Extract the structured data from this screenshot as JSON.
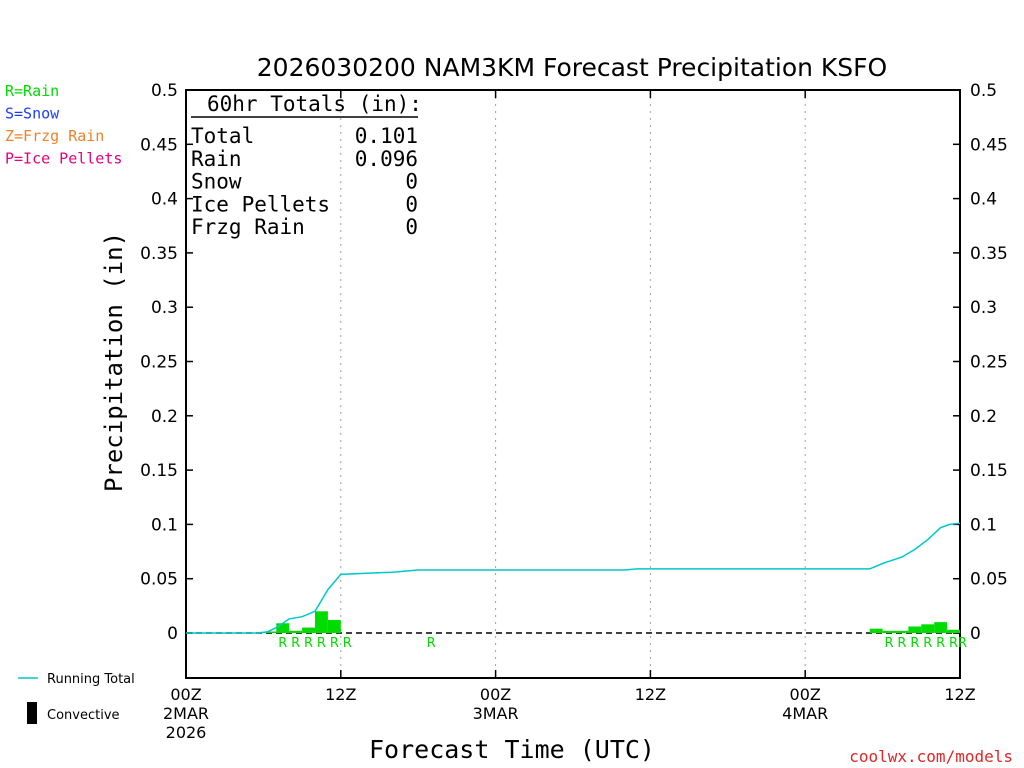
{
  "chart_data": {
    "type": "bar",
    "title": "2026030200 NAM3KM Forecast Precipitation KSFO",
    "xlabel": "Forecast Time (UTC)",
    "ylabel": "Precipitation (in)",
    "ylim": [
      -0.04,
      0.5
    ],
    "xlim_hours": [
      0,
      60
    ],
    "y_ticks": [
      "0.5",
      "0.45",
      "0.4",
      "0.35",
      "0.3",
      "0.25",
      "0.2",
      "0.15",
      "0.1",
      "0.05",
      "0"
    ],
    "y_tick_values": [
      0.5,
      0.45,
      0.4,
      0.35,
      0.3,
      0.25,
      0.2,
      0.15,
      0.1,
      0.05,
      0
    ],
    "x_ticks": [
      {
        "hour": 0,
        "label": "00Z",
        "sub1": "2MAR",
        "sub2": "2026"
      },
      {
        "hour": 12,
        "label": "12Z",
        "sub1": "",
        "sub2": ""
      },
      {
        "hour": 24,
        "label": "00Z",
        "sub1": "3MAR",
        "sub2": ""
      },
      {
        "hour": 36,
        "label": "12Z",
        "sub1": "",
        "sub2": ""
      },
      {
        "hour": 48,
        "label": "00Z",
        "sub1": "4MAR",
        "sub2": ""
      },
      {
        "hour": 60,
        "label": "12Z",
        "sub1": "",
        "sub2": ""
      }
    ],
    "vertical_gridlines_hours": [
      12,
      24,
      36,
      48
    ],
    "bars": [
      {
        "hour": 7,
        "value": 0.001
      },
      {
        "hour": 8,
        "value": 0.009
      },
      {
        "hour": 9,
        "value": 0.002
      },
      {
        "hour": 10,
        "value": 0.005
      },
      {
        "hour": 11,
        "value": 0.02
      },
      {
        "hour": 12,
        "value": 0.012
      },
      {
        "hour": 54,
        "value": 0.004
      },
      {
        "hour": 55,
        "value": 0.002
      },
      {
        "hour": 56,
        "value": 0.002
      },
      {
        "hour": 57,
        "value": 0.006
      },
      {
        "hour": 58,
        "value": 0.008
      },
      {
        "hour": 59,
        "value": 0.01
      },
      {
        "hour": 60,
        "value": 0.003
      }
    ],
    "running_total": [
      [
        0,
        0
      ],
      [
        5.5,
        0
      ],
      [
        6.3,
        0.001
      ],
      [
        7,
        0.005
      ],
      [
        8,
        0.013
      ],
      [
        9,
        0.015
      ],
      [
        10,
        0.02
      ],
      [
        11,
        0.04
      ],
      [
        12,
        0.054
      ],
      [
        14,
        0.055
      ],
      [
        16,
        0.056
      ],
      [
        18,
        0.058
      ],
      [
        24,
        0.058
      ],
      [
        30,
        0.058
      ],
      [
        34,
        0.058
      ],
      [
        35,
        0.059
      ],
      [
        40,
        0.059
      ],
      [
        48,
        0.059
      ],
      [
        53,
        0.059
      ],
      [
        54,
        0.064
      ],
      [
        55.5,
        0.07
      ],
      [
        56.5,
        0.077
      ],
      [
        57.5,
        0.086
      ],
      [
        58.5,
        0.097
      ],
      [
        59.2,
        0.1
      ],
      [
        60,
        0.101
      ]
    ],
    "ptype_labels": [
      {
        "hour": 7.5,
        "text": "R"
      },
      {
        "hour": 8.5,
        "text": "R"
      },
      {
        "hour": 9.5,
        "text": "R"
      },
      {
        "hour": 10.5,
        "text": "R"
      },
      {
        "hour": 11.5,
        "text": "R"
      },
      {
        "hour": 12.5,
        "text": "R"
      },
      {
        "hour": 19.0,
        "text": "R"
      },
      {
        "hour": 54.5,
        "text": "R"
      },
      {
        "hour": 55.5,
        "text": "R"
      },
      {
        "hour": 56.5,
        "text": "R"
      },
      {
        "hour": 57.5,
        "text": "R"
      },
      {
        "hour": 58.5,
        "text": "R"
      },
      {
        "hour": 59.5,
        "text": "R"
      },
      {
        "hour": 60.2,
        "text": "R"
      }
    ],
    "totals_box": {
      "header": "60hr Totals (in):",
      "rows": [
        {
          "label": "Total",
          "value": "0.101"
        },
        {
          "label": "Rain",
          "value": "0.096"
        },
        {
          "label": "Snow",
          "value": "0"
        },
        {
          "label": "Ice Pellets",
          "value": "0"
        },
        {
          "label": "Frzg Rain",
          "value": "0"
        }
      ]
    },
    "ptype_legend": [
      {
        "text": "R=Rain",
        "color": "#00dc00"
      },
      {
        "text": "S=Snow",
        "color": "#1e3cff"
      },
      {
        "text": "Z=Frzg Rain",
        "color": "#f0822a"
      },
      {
        "text": "P=Ice Pellets",
        "color": "#e6007e"
      }
    ],
    "series_legend": [
      {
        "text": "Running Total",
        "color": "#00c8c8",
        "kind": "line"
      },
      {
        "text": "Convective",
        "color": "#000000",
        "kind": "bar"
      }
    ],
    "credit": "coolwx.com/models",
    "colors": {
      "bar": "#00dc00",
      "running_total": "#00c8c8",
      "rain_label": "#00dc00",
      "credit": "#dc2828",
      "grid": "#a0a0a0"
    }
  }
}
